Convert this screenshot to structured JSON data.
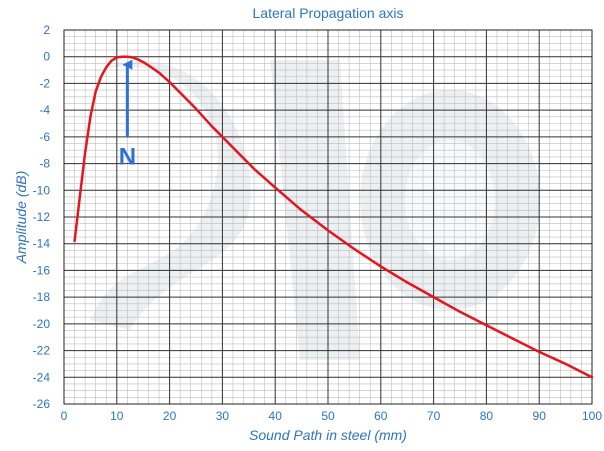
{
  "chart_data": {
    "type": "line",
    "title": "Lateral Propagation axis",
    "xlabel": "Sound Path in steel (mm)",
    "ylabel": "Amplitude (dB)",
    "xlim": [
      0,
      100
    ],
    "ylim": [
      -26,
      2
    ],
    "x_ticks": [
      "0",
      "10",
      "20",
      "30",
      "40",
      "50",
      "60",
      "70",
      "80",
      "90",
      "100"
    ],
    "y_ticks": [
      "2",
      "0",
      "-2",
      "-4",
      "-6",
      "-8",
      "-10",
      "-12",
      "-14",
      "-16",
      "-18",
      "-20",
      "-22",
      "-24",
      "-26"
    ],
    "grid": true,
    "series": [
      {
        "color": "#e8141c",
        "x": [
          2,
          3,
          4,
          5,
          6,
          7,
          8,
          9,
          10,
          11,
          12,
          13,
          14,
          15,
          16,
          18,
          20,
          22,
          25,
          28,
          30,
          33,
          36,
          40,
          45,
          50,
          55,
          60,
          65,
          70,
          75,
          80,
          85,
          90,
          95,
          100
        ],
        "y": [
          -13.8,
          -10.5,
          -7.2,
          -4.5,
          -2.6,
          -1.5,
          -0.8,
          -0.3,
          -0.05,
          0,
          0,
          -0.05,
          -0.2,
          -0.4,
          -0.65,
          -1.2,
          -1.9,
          -2.7,
          -3.9,
          -5.2,
          -6.0,
          -7.2,
          -8.4,
          -9.8,
          -11.5,
          -13.0,
          -14.4,
          -15.7,
          -16.9,
          -18.0,
          -19.1,
          -20.1,
          -21.1,
          -22.1,
          -23.0,
          -24.0
        ]
      }
    ],
    "annotations": [
      {
        "text": "N",
        "color": "#2f6fd6",
        "x": 12,
        "y": 0
      }
    ]
  }
}
